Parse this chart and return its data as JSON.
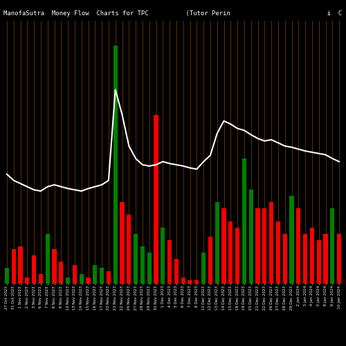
{
  "title": "ManofaSutra  Money Flow  Charts for TPC          (Tutor Perin                          i  C",
  "bg_color": "#000000",
  "bar_colors_pattern": [
    "green",
    "red",
    "red",
    "red",
    "red",
    "red",
    "green",
    "red",
    "red",
    "green",
    "red",
    "green",
    "red",
    "green",
    "green",
    "red",
    "green",
    "red",
    "red",
    "green",
    "green",
    "green",
    "red",
    "green",
    "red",
    "red",
    "red",
    "red",
    "red",
    "green",
    "red",
    "green",
    "red",
    "red",
    "red",
    "green",
    "green",
    "red",
    "red",
    "red",
    "red",
    "red",
    "green",
    "red",
    "red",
    "red",
    "red",
    "red",
    "green",
    "red"
  ],
  "bar_heights": [
    25,
    55,
    60,
    10,
    45,
    15,
    80,
    55,
    35,
    10,
    30,
    15,
    10,
    30,
    25,
    20,
    380,
    130,
    110,
    80,
    60,
    50,
    270,
    90,
    70,
    40,
    10,
    5,
    5,
    50,
    75,
    130,
    120,
    100,
    90,
    200,
    150,
    120,
    120,
    130,
    100,
    80,
    140,
    120,
    80,
    90,
    70,
    80,
    120,
    80
  ],
  "line_values": [
    175,
    165,
    160,
    155,
    150,
    148,
    155,
    158,
    155,
    152,
    150,
    148,
    152,
    155,
    158,
    165,
    310,
    270,
    220,
    200,
    190,
    188,
    190,
    195,
    192,
    190,
    188,
    185,
    183,
    195,
    205,
    240,
    260,
    255,
    248,
    245,
    238,
    232,
    228,
    230,
    225,
    220,
    218,
    215,
    212,
    210,
    208,
    206,
    200,
    195
  ],
  "vline_color": "#8B4513",
  "line_color": "#ffffff",
  "title_color": "#ffffff",
  "title_fontsize": 6.5,
  "tick_color": "#ffffff",
  "tick_fontsize": 4,
  "ylim_max": 420,
  "x_labels": [
    "27 Oct 2023",
    "31 Oct 2023",
    "1 Nov 2023",
    "2 Nov 2023",
    "3 Nov 2023",
    "6 Nov 2023",
    "7 Nov 2023",
    "8 Nov 2023",
    "9 Nov 2023",
    "10 Nov 2023",
    "13 Nov 2023",
    "14 Nov 2023",
    "15 Nov 2023",
    "16 Nov 2023",
    "17 Nov 2023",
    "20 Nov 2023",
    "21 Nov 2023",
    "22 Nov 2023",
    "24 Nov 2023",
    "27 Nov 2023",
    "28 Nov 2023",
    "29 Nov 2023",
    "30 Nov 2023",
    "1 Dec 2023",
    "4 Dec 2023",
    "5 Dec 2023",
    "6 Dec 2023",
    "7 Dec 2023",
    "8 Dec 2023",
    "11 Dec 2023",
    "12 Dec 2023",
    "13 Dec 2023",
    "14 Dec 2023",
    "15 Dec 2023",
    "18 Dec 2023",
    "19 Dec 2023",
    "20 Dec 2023",
    "21 Dec 2023",
    "22 Dec 2023",
    "26 Dec 2023",
    "27 Dec 2023",
    "28 Dec 2023",
    "29 Dec 2023",
    "2 Jan 2024",
    "3 Jan 2024",
    "4 Jan 2024",
    "5 Jan 2024",
    "8 Jan 2024",
    "9 Jan 2024",
    "10 Jan 2024"
  ]
}
